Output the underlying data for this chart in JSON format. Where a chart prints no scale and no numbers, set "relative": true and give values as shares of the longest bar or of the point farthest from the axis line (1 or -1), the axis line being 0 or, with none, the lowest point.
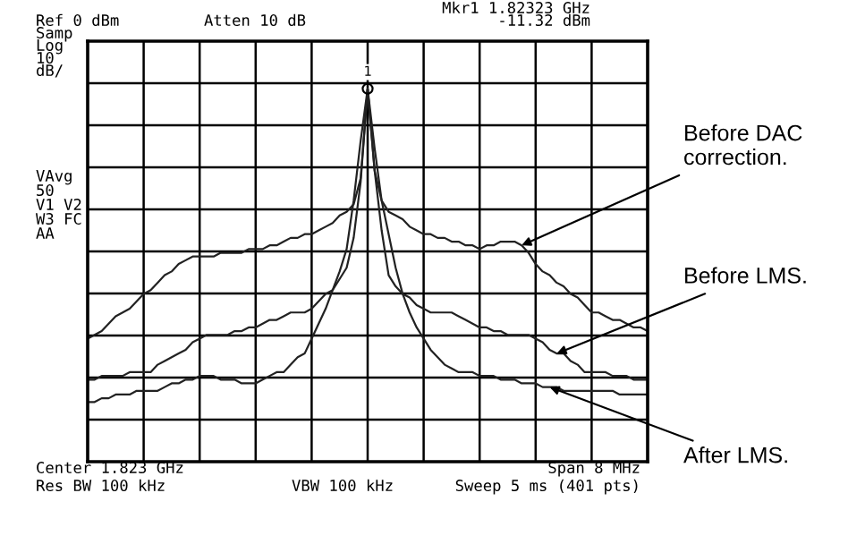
{
  "chart_data": {
    "type": "line",
    "relative": true,
    "grid": true,
    "marker": "none",
    "line_style": "solid",
    "categories": [
      null,
      null,
      null,
      null,
      null,
      null,
      null,
      null,
      null,
      null,
      null,
      null,
      null,
      null,
      null,
      null,
      null,
      null,
      null,
      null,
      null,
      null,
      null,
      null,
      null,
      null,
      null,
      null,
      null,
      null,
      null,
      null,
      null,
      null,
      null,
      null,
      null,
      null,
      null,
      null,
      null,
      null,
      null,
      null,
      null,
      null,
      null,
      null,
      null,
      null,
      null,
      null,
      null,
      null,
      null,
      null,
      null,
      null,
      null,
      null,
      null,
      null,
      null,
      null,
      null,
      null,
      null,
      null,
      null,
      null,
      null,
      null,
      null,
      null,
      null,
      null,
      null,
      null,
      null,
      null,
      null
    ],
    "series": [
      {
        "name": "Before DAC correction.",
        "color": "#222222",
        "values": [
          0.33,
          0.34,
          0.35,
          0.37,
          0.39,
          0.4,
          0.41,
          0.43,
          0.45,
          0.46,
          0.48,
          0.5,
          0.51,
          0.53,
          0.54,
          0.55,
          0.55,
          0.55,
          0.55,
          0.56,
          0.56,
          0.56,
          0.56,
          0.57,
          0.57,
          0.57,
          0.58,
          0.58,
          0.59,
          0.6,
          0.6,
          0.61,
          0.61,
          0.62,
          0.63,
          0.64,
          0.66,
          0.67,
          0.69,
          0.76,
          1.0,
          0.78,
          0.7,
          0.67,
          0.66,
          0.65,
          0.63,
          0.62,
          0.61,
          0.61,
          0.6,
          0.6,
          0.59,
          0.59,
          0.58,
          0.58,
          0.57,
          0.58,
          0.58,
          0.59,
          0.59,
          0.59,
          0.58,
          0.56,
          0.53,
          0.51,
          0.5,
          0.48,
          0.47,
          0.45,
          0.44,
          0.42,
          0.4,
          0.4,
          0.39,
          0.38,
          0.38,
          0.37,
          0.36,
          0.36,
          0.35
        ]
      },
      {
        "name": "Before LMS.",
        "color": "#222222",
        "values": [
          0.22,
          0.22,
          0.23,
          0.23,
          0.23,
          0.23,
          0.24,
          0.24,
          0.24,
          0.24,
          0.26,
          0.27,
          0.28,
          0.29,
          0.3,
          0.32,
          0.33,
          0.34,
          0.34,
          0.34,
          0.34,
          0.35,
          0.35,
          0.36,
          0.36,
          0.37,
          0.38,
          0.38,
          0.39,
          0.4,
          0.4,
          0.4,
          0.41,
          0.43,
          0.45,
          0.46,
          0.49,
          0.52,
          0.6,
          0.75,
          1.0,
          0.78,
          0.62,
          0.5,
          0.47,
          0.45,
          0.44,
          0.42,
          0.41,
          0.4,
          0.4,
          0.4,
          0.4,
          0.39,
          0.38,
          0.37,
          0.36,
          0.36,
          0.35,
          0.35,
          0.34,
          0.34,
          0.34,
          0.34,
          0.33,
          0.32,
          0.3,
          0.29,
          0.29,
          0.27,
          0.26,
          0.24,
          0.24,
          0.24,
          0.24,
          0.23,
          0.23,
          0.23,
          0.22,
          0.22,
          0.22
        ]
      },
      {
        "name": "After LMS.",
        "color": "#222222",
        "values": [
          0.16,
          0.16,
          0.17,
          0.17,
          0.18,
          0.18,
          0.18,
          0.19,
          0.19,
          0.19,
          0.19,
          0.2,
          0.21,
          0.21,
          0.22,
          0.22,
          0.23,
          0.23,
          0.23,
          0.22,
          0.22,
          0.22,
          0.21,
          0.21,
          0.21,
          0.22,
          0.23,
          0.24,
          0.24,
          0.26,
          0.28,
          0.29,
          0.33,
          0.37,
          0.41,
          0.46,
          0.51,
          0.57,
          0.7,
          0.86,
          1.0,
          0.84,
          0.7,
          0.61,
          0.52,
          0.45,
          0.4,
          0.36,
          0.33,
          0.3,
          0.28,
          0.26,
          0.25,
          0.24,
          0.24,
          0.24,
          0.23,
          0.23,
          0.23,
          0.22,
          0.22,
          0.22,
          0.21,
          0.21,
          0.21,
          0.2,
          0.2,
          0.2,
          0.19,
          0.19,
          0.19,
          0.19,
          0.19,
          0.19,
          0.19,
          0.19,
          0.18,
          0.18,
          0.18,
          0.18,
          0.18
        ]
      }
    ],
    "annotations": [
      "Ref 0 dBm",
      "Atten 10 dB",
      "Mkr1 1.82323 GHz",
      "-11.32 dBm",
      "Samp",
      "Log",
      "10",
      "dB/",
      "VAvg",
      "50",
      "V1 V2",
      "W3 FC",
      "AA",
      "Center 1.823 GHz",
      "Span 8 MHz",
      "Res BW 100 kHz",
      "VBW 100 kHz",
      "Sweep 5 ms (401 pts)",
      "1"
    ]
  }
}
